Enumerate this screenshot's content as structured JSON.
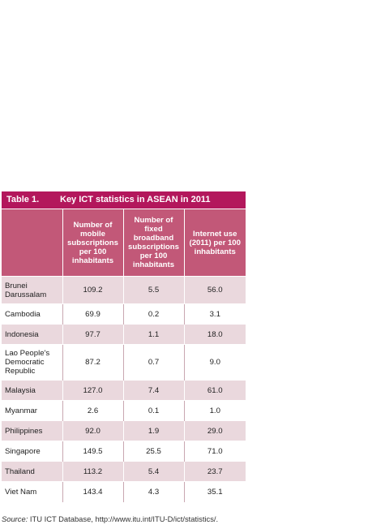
{
  "table": {
    "label": "Table 1.",
    "title": "Key ICT statistics in ASEAN in 2011",
    "headers": [
      "",
      "Number of mobile subscriptions per 100 inhabitants",
      "Number of fixed broadband subscriptions per 100 inhabitants",
      "Internet use (2011) per 100 inhabitants"
    ],
    "rows": [
      {
        "country": "Brunei Darussalam",
        "mobile": "109.2",
        "broadband": "5.5",
        "internet": "56.0"
      },
      {
        "country": "Cambodia",
        "mobile": "69.9",
        "broadband": "0.2",
        "internet": "3.1"
      },
      {
        "country": "Indonesia",
        "mobile": "97.7",
        "broadband": "1.1",
        "internet": "18.0"
      },
      {
        "country": "Lao People's Democratic Republic",
        "mobile": "87.2",
        "broadband": "0.7",
        "internet": "9.0"
      },
      {
        "country": "Malaysia",
        "mobile": "127.0",
        "broadband": "7.4",
        "internet": "61.0"
      },
      {
        "country": "Myanmar",
        "mobile": "2.6",
        "broadband": "0.1",
        "internet": "1.0"
      },
      {
        "country": "Philippines",
        "mobile": "92.0",
        "broadband": "1.9",
        "internet": "29.0"
      },
      {
        "country": "Singapore",
        "mobile": "149.5",
        "broadband": "25.5",
        "internet": "71.0"
      },
      {
        "country": "Thailand",
        "mobile": "113.2",
        "broadband": "5.4",
        "internet": "23.7"
      },
      {
        "country": "Viet Nam",
        "mobile": "143.4",
        "broadband": "4.3",
        "internet": "35.1"
      }
    ]
  },
  "source": {
    "label": "Source:",
    "text": "ITU ICT Database, http://www.itu.int/ITU-D/ict/statistics/."
  },
  "colors": {
    "title_bg": "#b3175c",
    "header_bg": "#c25878",
    "stripe": "#ead8dd"
  }
}
